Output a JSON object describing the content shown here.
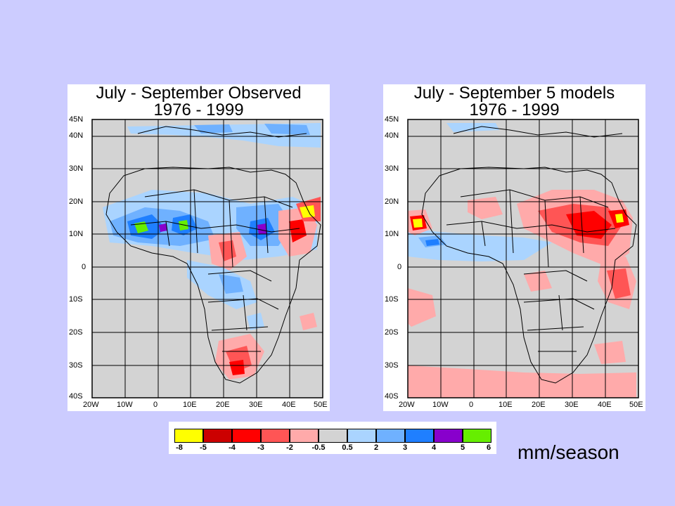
{
  "maps": [
    {
      "title_line1": "July - September Observed",
      "title_line2": "1976 - 1999",
      "lat_labels": [
        "45N",
        "40N",
        "30N",
        "20N",
        "10N",
        "0",
        "10S",
        "20S",
        "30S",
        "40S"
      ],
      "lon_labels": [
        "20W",
        "10W",
        "0",
        "10E",
        "20E",
        "30E",
        "40E",
        "50E"
      ]
    },
    {
      "title_line1": "July - September 5 models",
      "title_line2": "1976 - 1999",
      "lat_labels": [
        "45N",
        "40N",
        "30N",
        "20N",
        "10N",
        "0",
        "10S",
        "20S",
        "30S",
        "40S"
      ],
      "lon_labels": [
        "20W",
        "10W",
        "0",
        "10E",
        "20E",
        "30E",
        "40E",
        "50E"
      ]
    }
  ],
  "legend": {
    "colors": [
      "#ffff00",
      "#cc0000",
      "#ff0000",
      "#ff5555",
      "#ffaaaa",
      "#d3d3d3",
      "#aad4ff",
      "#6fb1ff",
      "#1f7fff",
      "#8800cc",
      "#66ee00"
    ],
    "labels": [
      "-8",
      "-5",
      "-4",
      "-3",
      "-2",
      "-0.5",
      "0.5",
      "2",
      "3",
      "4",
      "5",
      "6"
    ]
  },
  "units": "mm/season",
  "colors": {
    "background": "#ccccff",
    "land_default": "#d3d3d3"
  }
}
